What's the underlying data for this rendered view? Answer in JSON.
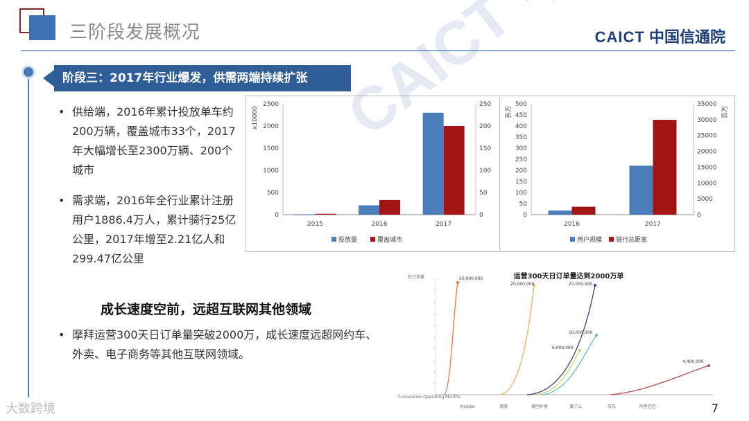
{
  "header": {
    "title": "三阶段发展概况",
    "brand_en": "CAICT",
    "brand_cn": "中国信通院"
  },
  "stage_label": "阶段三：2017年行业爆发，供需两端持续扩张",
  "bullets": [
    {
      "dot": "•",
      "lines": [
        "供给端，2016年累计投放单车约",
        "200万辆，覆盖城市33个，2017",
        "年大幅增长至2300万辆、200个",
        "城市"
      ]
    },
    {
      "dot": "•",
      "lines": [
        "需求端，2016年全行业累计注册",
        "用户1886.4万人，累计骑行25亿",
        "公里，2017年增至2.21亿人和",
        "299.47亿公里"
      ]
    }
  ],
  "sub_heading": "成长速度空前，远超互联网其他领域",
  "bullet3": {
    "dot": "•",
    "lines": [
      "摩拜运营300天日订单量突破2000万，成长速度远超网约车、",
      "外卖、电子商务等其他互联网领域。"
    ]
  },
  "page_number": "7",
  "footer_logo": "大数跨境",
  "watermark": "CAICT 中国信通院",
  "chart_data": [
    {
      "type": "bar",
      "categories": [
        "2015",
        "2016",
        "2017"
      ],
      "series": [
        {
          "name": "投放量",
          "axis": "left",
          "color": "#4a7ebb",
          "values": [
            5,
            210,
            2300
          ]
        },
        {
          "name": "覆盖城市",
          "axis": "right",
          "color": "#a31515",
          "values": [
            2,
            33,
            200
          ]
        }
      ],
      "y_left": {
        "label": "x10000",
        "ticks": [
          "0",
          "500",
          "1000",
          "1500",
          "2000",
          "2500"
        ],
        "ylim": [
          0,
          2500
        ]
      },
      "y_right": {
        "ticks": [
          "0",
          "50",
          "100",
          "150",
          "200",
          "250"
        ],
        "ylim": [
          0,
          250
        ]
      },
      "legend_position": "bottom"
    },
    {
      "type": "bar",
      "categories": [
        "2016",
        "2017"
      ],
      "series": [
        {
          "name": "用户规模",
          "axis": "left",
          "color": "#4a7ebb",
          "values": [
            18.864,
            221
          ]
        },
        {
          "name": "骑行总距离",
          "axis": "right",
          "color": "#a31515",
          "values": [
            2500,
            29947
          ]
        }
      ],
      "y_left": {
        "label": "百万",
        "ticks": [
          "0",
          "50",
          "100",
          "150",
          "200",
          "250",
          "300",
          "350",
          "400",
          "450",
          "500"
        ],
        "ylim": [
          0,
          500
        ]
      },
      "y_right": {
        "label": "百万",
        "ticks": [
          "0",
          "5000",
          "10000",
          "15000",
          "20000",
          "25000",
          "30000",
          "35000"
        ],
        "ylim": [
          0,
          35000
        ]
      },
      "legend_position": "bottom"
    },
    {
      "type": "line",
      "title": "运营300天日订单量达到2000万单",
      "ylabel": "日订单量",
      "xlabel": "Cumulative Operating Months",
      "x_labels": [
        "Mobike",
        "滴滴",
        "美团外卖",
        "饿了么",
        "京东",
        "阿里巴巴",
        "",
        ""
      ],
      "series": [
        {
          "name": "Mobike",
          "color": "#e8734a",
          "end_label": "20,000,000"
        },
        {
          "name": "滴滴",
          "color": "#f0b25a",
          "end_label": "20,000,000"
        },
        {
          "name": "美团外卖",
          "color": "#3b3b8a",
          "end_label": "20,000,000"
        },
        {
          "name": "饿了么",
          "color": "#6fb3d9",
          "end_label": "10,000,000"
        },
        {
          "name": "京东",
          "color": "#c7d86a",
          "end_label": "6,000,000"
        },
        {
          "name": "阿里巴巴",
          "color": "#b04b4b",
          "end_label": "4,400,000"
        }
      ]
    }
  ]
}
